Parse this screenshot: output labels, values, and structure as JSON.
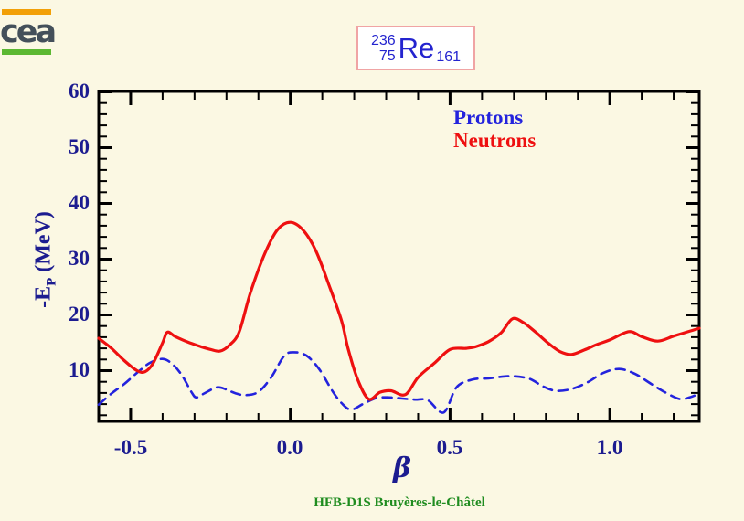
{
  "logo": {
    "text": "cea",
    "top_bar_color": "#F2A007",
    "bottom_bar_color": "#5CB832",
    "text_color": "#44505A"
  },
  "nuclide": {
    "mass_number": "236",
    "proton_number": "75",
    "symbol": "Re",
    "neutron_number": "161",
    "text_color": "#2424CF",
    "box_border_color": "#F0A4A4"
  },
  "footer": {
    "label": "HFB-D1S Bruyères-le-Châtel",
    "color": "#1F8C1F"
  },
  "theme": {
    "background": "#FBF8E3",
    "axis_text": "#1C1C90",
    "frame": "#000000"
  },
  "chart_data": {
    "type": "line",
    "title": "236 75 Re 161 pairing energy vs deformation",
    "xlabel": "β",
    "ylabel": "-E_P (MeV)",
    "ylabel_parts": {
      "prefix": "-E",
      "sub": "P",
      "suffix": " (MeV)"
    },
    "xlim": [
      -0.6,
      1.28
    ],
    "ylim": [
      0,
      60
    ],
    "grid": false,
    "legend_position": "upper right inside, text only",
    "x_ticks": [
      {
        "value": -0.5,
        "label": "-0.5"
      },
      {
        "value": 0.0,
        "label": "0.0"
      },
      {
        "value": 0.5,
        "label": "0.5"
      },
      {
        "value": 1.0,
        "label": "1.0"
      }
    ],
    "x_minor_step": 0.1,
    "y_ticks": [
      {
        "value": 60,
        "label": "60"
      },
      {
        "value": 50,
        "label": "50"
      },
      {
        "value": 40,
        "label": "40"
      },
      {
        "value": 30,
        "label": "30"
      },
      {
        "value": 20,
        "label": "20"
      },
      {
        "value": 10,
        "label": "10"
      }
    ],
    "y_minor_step": 2,
    "series": [
      {
        "name": "Protons",
        "color": "#2323DD",
        "style": "dashed",
        "x": [
          -0.6,
          -0.56,
          -0.52,
          -0.48,
          -0.44,
          -0.4,
          -0.37,
          -0.34,
          -0.31,
          -0.295,
          -0.27,
          -0.23,
          -0.2,
          -0.17,
          -0.14,
          -0.1,
          -0.06,
          -0.02,
          0.01,
          0.05,
          0.09,
          0.13,
          0.16,
          0.19,
          0.23,
          0.27,
          0.31,
          0.35,
          0.39,
          0.43,
          0.48,
          0.52,
          0.57,
          0.62,
          0.66,
          0.7,
          0.75,
          0.79,
          0.83,
          0.88,
          0.93,
          0.98,
          1.03,
          1.08,
          1.13,
          1.18,
          1.22,
          1.25,
          1.28
        ],
        "y": [
          3.9,
          5.9,
          7.6,
          9.6,
          11.4,
          12.1,
          11.2,
          9.2,
          6.2,
          5.2,
          5.9,
          7.0,
          6.6,
          5.9,
          5.6,
          6.2,
          8.8,
          12.6,
          13.3,
          12.7,
          10.3,
          6.5,
          4.2,
          3.0,
          4.1,
          5.1,
          5.2,
          5.0,
          4.8,
          4.7,
          2.5,
          7.0,
          8.4,
          8.6,
          8.9,
          9.0,
          8.5,
          7.2,
          6.4,
          6.7,
          7.9,
          9.6,
          10.3,
          9.4,
          7.6,
          5.9,
          4.9,
          5.2,
          5.9
        ]
      },
      {
        "name": "Neutrons",
        "color": "#EE1010",
        "style": "solid",
        "x": [
          -0.6,
          -0.56,
          -0.52,
          -0.48,
          -0.455,
          -0.43,
          -0.4,
          -0.385,
          -0.36,
          -0.32,
          -0.28,
          -0.25,
          -0.22,
          -0.19,
          -0.16,
          -0.125,
          -0.08,
          -0.04,
          0.0,
          0.04,
          0.08,
          0.12,
          0.16,
          0.18,
          0.21,
          0.245,
          0.28,
          0.315,
          0.36,
          0.4,
          0.45,
          0.5,
          0.55,
          0.58,
          0.62,
          0.66,
          0.695,
          0.73,
          0.77,
          0.81,
          0.845,
          0.88,
          0.92,
          0.96,
          1.0,
          1.06,
          1.1,
          1.15,
          1.2,
          1.24,
          1.28
        ],
        "y": [
          15.8,
          14.0,
          11.8,
          10.0,
          9.8,
          11.3,
          15.0,
          16.9,
          16.1,
          15.1,
          14.3,
          13.8,
          13.5,
          14.6,
          17.0,
          24.0,
          31.0,
          35.3,
          36.6,
          35.2,
          31.5,
          25.5,
          19.0,
          14.1,
          8.5,
          4.9,
          6.1,
          6.4,
          5.7,
          8.8,
          11.3,
          13.8,
          14.0,
          14.3,
          15.2,
          16.8,
          19.3,
          18.6,
          16.8,
          14.8,
          13.4,
          12.9,
          13.7,
          14.7,
          15.5,
          17.0,
          16.1,
          15.3,
          16.2,
          16.9,
          17.6
        ]
      }
    ]
  }
}
